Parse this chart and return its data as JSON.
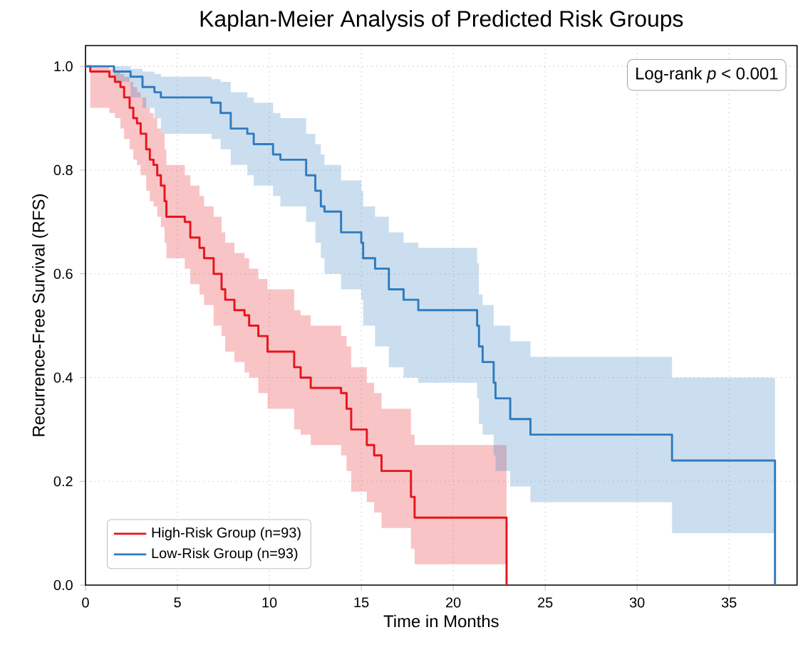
{
  "chart_data": {
    "type": "step",
    "title": "Kaplan-Meier Analysis of Predicted Risk Groups",
    "xlabel": "Time in Months",
    "ylabel": "Recurrence-Free Survival (RFS)",
    "annotations": [
      "Log-rank *p* < 0.001"
    ],
    "xlim": [
      0,
      38.7
    ],
    "ylim": [
      0,
      1.04
    ],
    "xticks": [
      0,
      5,
      10,
      15,
      20,
      25,
      30,
      35
    ],
    "yticks": [
      {
        "value": 0,
        "label": "0.0"
      },
      0.2,
      0.4,
      0.6,
      0.8,
      {
        "value": 1,
        "label": "1.0"
      }
    ],
    "grid": true,
    "legend": "bottom left",
    "series": [
      {
        "name": "High-Risk Group (n=93)",
        "color": "#e8141c",
        "x": [
          0,
          0.26,
          1.3,
          1.6,
          1.9,
          2.1,
          2.4,
          2.6,
          2.8,
          3.0,
          3.3,
          3.5,
          3.7,
          3.9,
          4.1,
          4.3,
          4.4,
          5.4,
          5.7,
          6.2,
          6.45,
          6.97,
          7.4,
          7.6,
          8.1,
          8.65,
          8.9,
          9.4,
          9.9,
          11.35,
          11.7,
          12.25,
          13.9,
          14.2,
          14.45,
          15.3,
          15.7,
          16.1,
          17.7,
          17.9,
          22.9
        ],
        "values": [
          1.0,
          0.99,
          0.98,
          0.97,
          0.96,
          0.94,
          0.92,
          0.9,
          0.89,
          0.87,
          0.84,
          0.82,
          0.81,
          0.79,
          0.77,
          0.74,
          0.71,
          0.7,
          0.67,
          0.65,
          0.63,
          0.6,
          0.57,
          0.55,
          0.53,
          0.52,
          0.5,
          0.48,
          0.45,
          0.42,
          0.4,
          0.38,
          0.37,
          0.34,
          0.3,
          0.27,
          0.25,
          0.22,
          0.17,
          0.13,
          0
        ],
        "upper": [
          1.0,
          1.0,
          0.995,
          0.99,
          0.985,
          0.98,
          0.97,
          0.96,
          0.95,
          0.94,
          0.92,
          0.91,
          0.9,
          0.88,
          0.87,
          0.84,
          0.81,
          0.79,
          0.77,
          0.75,
          0.73,
          0.71,
          0.68,
          0.66,
          0.64,
          0.63,
          0.61,
          0.59,
          0.57,
          0.53,
          0.52,
          0.5,
          0.48,
          0.46,
          0.42,
          0.39,
          0.37,
          0.34,
          0.29,
          0.27,
          0
        ],
        "lower": [
          1.0,
          0.92,
          0.91,
          0.9,
          0.88,
          0.86,
          0.84,
          0.82,
          0.81,
          0.79,
          0.76,
          0.74,
          0.73,
          0.71,
          0.69,
          0.66,
          0.63,
          0.61,
          0.58,
          0.56,
          0.54,
          0.5,
          0.48,
          0.45,
          0.43,
          0.41,
          0.4,
          0.37,
          0.34,
          0.3,
          0.29,
          0.27,
          0.25,
          0.22,
          0.18,
          0.16,
          0.14,
          0.11,
          0.07,
          0.04,
          0
        ]
      },
      {
        "name": "Low-Risk Group (n=93)",
        "color": "#2f7bbf",
        "x": [
          0,
          1.55,
          2.45,
          3.1,
          3.75,
          4.1,
          6.85,
          7.35,
          7.9,
          8.8,
          9.15,
          10.2,
          10.6,
          12.0,
          12.5,
          12.8,
          13.0,
          13.9,
          15.0,
          15.1,
          15.75,
          16.5,
          17.3,
          18.1,
          21.3,
          21.4,
          21.6,
          22.2,
          22.3,
          23.1,
          24.2,
          31.9,
          37.5
        ],
        "values": [
          1.0,
          0.99,
          0.98,
          0.96,
          0.95,
          0.94,
          0.93,
          0.91,
          0.88,
          0.87,
          0.85,
          0.83,
          0.82,
          0.79,
          0.76,
          0.73,
          0.72,
          0.68,
          0.66,
          0.63,
          0.61,
          0.57,
          0.55,
          0.53,
          0.5,
          0.46,
          0.43,
          0.39,
          0.36,
          0.32,
          0.29,
          0.24,
          0
        ],
        "upper": [
          1.0,
          1.0,
          0.995,
          0.99,
          0.985,
          0.98,
          0.975,
          0.97,
          0.95,
          0.94,
          0.93,
          0.91,
          0.9,
          0.87,
          0.85,
          0.83,
          0.81,
          0.78,
          0.76,
          0.73,
          0.71,
          0.68,
          0.66,
          0.65,
          0.62,
          0.56,
          0.54,
          0.5,
          0.5,
          0.47,
          0.44,
          0.4,
          0
        ],
        "lower": [
          1.0,
          0.97,
          0.94,
          0.92,
          0.9,
          0.87,
          0.86,
          0.84,
          0.81,
          0.79,
          0.77,
          0.75,
          0.73,
          0.7,
          0.66,
          0.63,
          0.6,
          0.57,
          0.55,
          0.5,
          0.46,
          0.42,
          0.4,
          0.39,
          0.36,
          0.31,
          0.29,
          0.25,
          0.22,
          0.19,
          0.16,
          0.1,
          0
        ]
      }
    ]
  }
}
